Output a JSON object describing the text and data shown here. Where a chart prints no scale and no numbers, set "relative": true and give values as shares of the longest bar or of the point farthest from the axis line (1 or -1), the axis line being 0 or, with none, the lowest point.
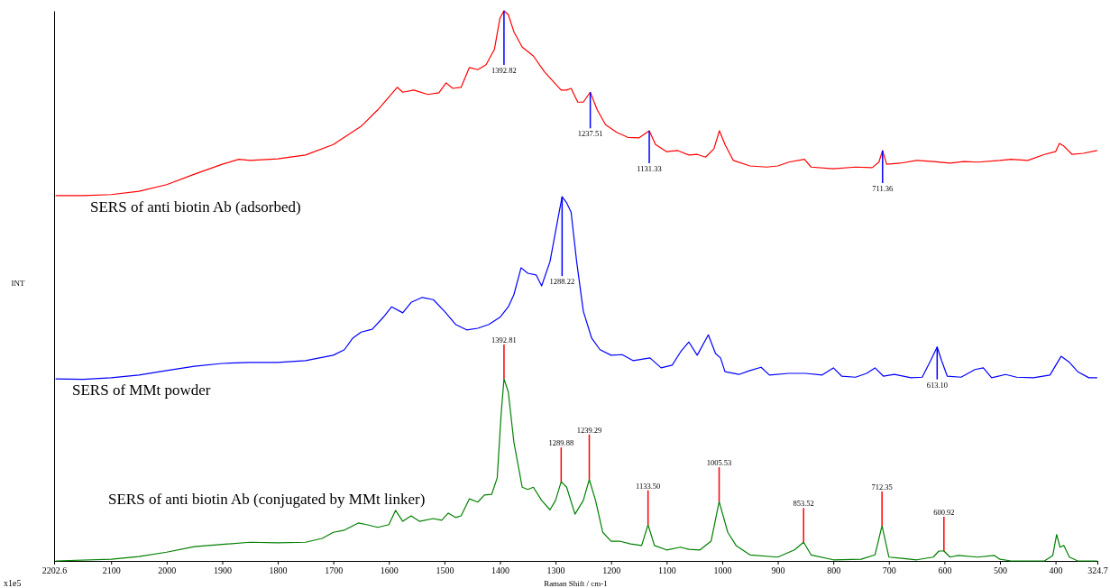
{
  "chart_data": {
    "type": "line",
    "relative": true,
    "xlabel": "Raman Shift / cm-1",
    "ylabel": "INT",
    "tick_labels": "x",
    "grid": false,
    "xlim": [
      2202.6,
      324.7
    ],
    "xticks": [
      2202.6,
      2100,
      2000,
      1900,
      1800,
      1700,
      1600,
      1500,
      1400,
      1300,
      1200,
      1100,
      1000,
      900,
      800,
      700,
      600,
      500,
      400,
      324.7
    ],
    "series": [
      {
        "name": "SERS of anti biotin Ab (adsorbed)",
        "color": "#ff0000",
        "x": [
          2200,
          2150,
          2100,
          2050,
          2000,
          1950,
          1900,
          1870,
          1850,
          1800,
          1750,
          1700,
          1650,
          1620,
          1585,
          1575,
          1555,
          1530,
          1510,
          1497,
          1485,
          1470,
          1455,
          1440,
          1425,
          1410,
          1400,
          1392.82,
          1385,
          1375,
          1360,
          1340,
          1320,
          1300,
          1290,
          1280,
          1272,
          1260,
          1250,
          1237.51,
          1225,
          1210,
          1190,
          1170,
          1150,
          1131.33,
          1120,
          1100,
          1080,
          1060,
          1045,
          1030,
          1015,
          1005,
          995,
          980,
          950,
          920,
          900,
          880,
          852,
          840,
          800,
          760,
          730,
          718,
          711.36,
          704,
          680,
          650,
          620,
          590,
          565,
          540,
          500,
          480,
          450,
          420,
          400,
          393,
          385,
          370,
          350,
          325
        ],
        "values": [
          0.664,
          0.664,
          0.666,
          0.672,
          0.684,
          0.703,
          0.721,
          0.73,
          0.728,
          0.731,
          0.738,
          0.757,
          0.79,
          0.82,
          0.861,
          0.852,
          0.856,
          0.848,
          0.851,
          0.869,
          0.859,
          0.861,
          0.897,
          0.893,
          0.902,
          0.93,
          0.987,
          1,
          0.993,
          0.962,
          0.934,
          0.918,
          0.889,
          0.867,
          0.856,
          0.856,
          0.859,
          0.834,
          0.834,
          0.852,
          0.82,
          0.793,
          0.779,
          0.77,
          0.769,
          0.782,
          0.757,
          0.744,
          0.746,
          0.738,
          0.739,
          0.734,
          0.749,
          0.782,
          0.757,
          0.728,
          0.718,
          0.716,
          0.718,
          0.725,
          0.73,
          0.716,
          0.713,
          0.716,
          0.715,
          0.725,
          0.746,
          0.721,
          0.723,
          0.728,
          0.726,
          0.723,
          0.726,
          0.725,
          0.728,
          0.73,
          0.728,
          0.739,
          0.744,
          0.759,
          0.754,
          0.739,
          0.741,
          0.746
        ]
      },
      {
        "name": "SERS of MMt powder",
        "color": "#0000ff",
        "x": [
          2200,
          2150,
          2100,
          2050,
          2000,
          1950,
          1900,
          1850,
          1800,
          1750,
          1700,
          1680,
          1665,
          1650,
          1630,
          1610,
          1595,
          1575,
          1560,
          1540,
          1520,
          1500,
          1480,
          1460,
          1440,
          1420,
          1400,
          1385,
          1375,
          1362,
          1350,
          1335,
          1325,
          1310,
          1295,
          1288.22,
          1280,
          1272,
          1262,
          1250,
          1235,
          1220,
          1200,
          1180,
          1160,
          1130,
          1110,
          1090,
          1075,
          1060,
          1045,
          1025,
          1012,
          1003,
          995,
          970,
          950,
          930,
          915,
          880,
          850,
          820,
          800,
          785,
          760,
          740,
          725,
          710,
          690,
          660,
          640,
          625,
          613.1,
          605,
          595,
          570,
          545,
          530,
          515,
          490,
          470,
          440,
          410,
          390,
          375,
          360,
          340,
          325
        ],
        "values": [
          0.331,
          0.33,
          0.333,
          0.338,
          0.346,
          0.354,
          0.359,
          0.361,
          0.361,
          0.364,
          0.374,
          0.384,
          0.405,
          0.416,
          0.421,
          0.443,
          0.462,
          0.451,
          0.47,
          0.479,
          0.475,
          0.454,
          0.43,
          0.42,
          0.423,
          0.43,
          0.443,
          0.462,
          0.484,
          0.533,
          0.523,
          0.52,
          0.5,
          0.544,
          0.626,
          0.662,
          0.651,
          0.634,
          0.544,
          0.454,
          0.405,
          0.384,
          0.374,
          0.375,
          0.364,
          0.369,
          0.351,
          0.356,
          0.38,
          0.398,
          0.374,
          0.411,
          0.377,
          0.369,
          0.344,
          0.339,
          0.346,
          0.352,
          0.338,
          0.341,
          0.341,
          0.338,
          0.351,
          0.336,
          0.334,
          0.341,
          0.351,
          0.336,
          0.339,
          0.333,
          0.334,
          0.364,
          0.389,
          0.364,
          0.336,
          0.334,
          0.348,
          0.351,
          0.333,
          0.339,
          0.334,
          0.333,
          0.338,
          0.372,
          0.361,
          0.344,
          0.333,
          0.333
        ]
      },
      {
        "name": "SERS of anti biotin Ab (conjugated by MMt linker)",
        "color": "#008000",
        "x": [
          2200,
          2100,
          2050,
          2000,
          1950,
          1900,
          1850,
          1800,
          1750,
          1720,
          1700,
          1680,
          1655,
          1640,
          1620,
          1600,
          1588,
          1575,
          1560,
          1545,
          1520,
          1505,
          1493,
          1480,
          1470,
          1455,
          1440,
          1428,
          1415,
          1405,
          1398,
          1392.81,
          1385,
          1375,
          1360,
          1350,
          1340,
          1325,
          1310,
          1300,
          1289.88,
          1280,
          1265,
          1250,
          1239.29,
          1228,
          1215,
          1200,
          1185,
          1165,
          1145,
          1133.5,
          1122,
          1100,
          1075,
          1060,
          1040,
          1020,
          1005.53,
          990,
          975,
          950,
          900,
          870,
          853.52,
          840,
          800,
          750,
          725,
          712.35,
          700,
          680,
          650,
          620,
          610,
          600.92,
          590,
          575,
          540,
          510,
          500,
          480,
          420,
          405,
          398,
          392,
          385,
          375,
          360,
          325
        ],
        "values": [
          0,
          0.003,
          0.008,
          0.016,
          0.026,
          0.03,
          0.034,
          0.033,
          0.034,
          0.041,
          0.052,
          0.056,
          0.069,
          0.066,
          0.061,
          0.066,
          0.092,
          0.072,
          0.082,
          0.072,
          0.077,
          0.074,
          0.087,
          0.079,
          0.082,
          0.113,
          0.107,
          0.12,
          0.121,
          0.151,
          0.266,
          0.331,
          0.307,
          0.216,
          0.134,
          0.13,
          0.134,
          0.11,
          0.093,
          0.11,
          0.144,
          0.134,
          0.085,
          0.11,
          0.148,
          0.11,
          0.052,
          0.036,
          0.036,
          0.031,
          0.028,
          0.066,
          0.028,
          0.02,
          0.025,
          0.021,
          0.02,
          0.036,
          0.108,
          0.052,
          0.028,
          0.011,
          0.007,
          0.02,
          0.034,
          0.011,
          0.002,
          0.003,
          0.011,
          0.064,
          0.007,
          0.005,
          0.002,
          0.007,
          0.018,
          0.018,
          0.007,
          0.01,
          0.007,
          0.01,
          0.003,
          0,
          0,
          0.01,
          0.048,
          0.025,
          0.028,
          0.007,
          0,
          0
        ]
      }
    ],
    "annotations": [
      {
        "text": "1392.82",
        "x": 1392.82,
        "y": 1
      },
      {
        "text": "1237.51",
        "x": 1237.51,
        "y": 0.852
      },
      {
        "text": "1131.33",
        "x": 1131.33,
        "y": 0.782
      },
      {
        "text": "711.36",
        "x": 711.36,
        "y": 0.746
      },
      {
        "text": "1288.22",
        "x": 1288.22,
        "y": 0.662
      },
      {
        "text": "613.10",
        "x": 613.1,
        "y": 0.389
      },
      {
        "text": "1392.81",
        "x": 1392.81,
        "y": 0.331
      },
      {
        "text": "1289.88",
        "x": 1289.88,
        "y": 0.144
      },
      {
        "text": "1239.29",
        "x": 1239.29,
        "y": 0.148
      },
      {
        "text": "1133.50",
        "x": 1133.5,
        "y": 0.066
      },
      {
        "text": "1005.53",
        "x": 1005.53,
        "y": 0.108
      },
      {
        "text": "853.52",
        "x": 853.52,
        "y": 0.034
      },
      {
        "text": "712.35",
        "x": 712.35,
        "y": 0.064
      },
      {
        "text": "600.92",
        "x": 600.92,
        "y": 0.018
      },
      "x1e5"
    ]
  }
}
